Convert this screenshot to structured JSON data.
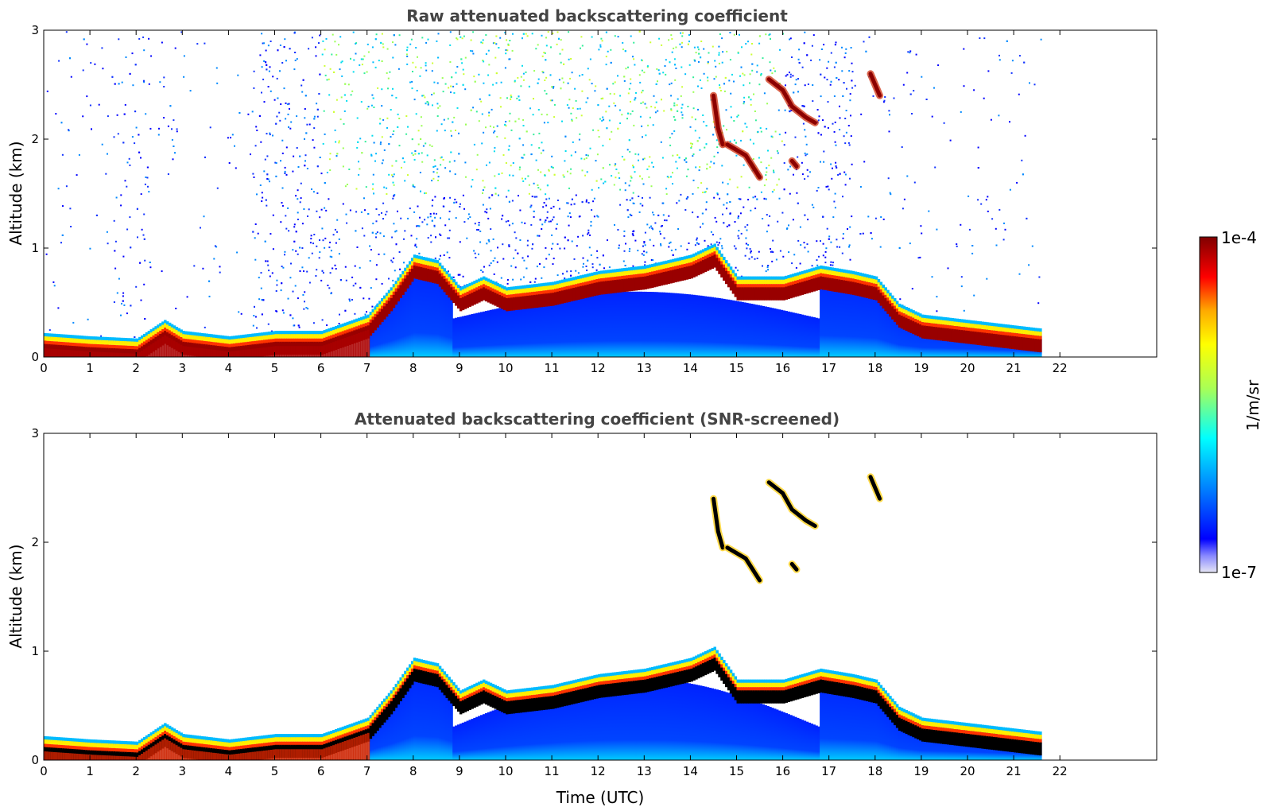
{
  "chart_data": [
    {
      "type": "heatmap",
      "title": "Raw attenuated backscattering coefficient",
      "xlabel": "",
      "ylabel": "Altitude (km)",
      "x_ticks": [
        "0",
        "1",
        "2",
        "3",
        "4",
        "5",
        "6",
        "7",
        "8",
        "9",
        "10",
        "11",
        "12",
        "13",
        "14",
        "15",
        "16",
        "17",
        "18",
        "19",
        "20",
        "21",
        "22"
      ],
      "y_ticks": [
        "0",
        "1",
        "2",
        "3"
      ],
      "xlim": [
        0,
        24
      ],
      "ylim": [
        0,
        3
      ],
      "data_end_time": 21.6,
      "features": {
        "boundary_layer_top_km": [
          [
            0,
            0.18
          ],
          [
            1,
            0.15
          ],
          [
            2,
            0.13
          ],
          [
            2.6,
            0.3
          ],
          [
            3,
            0.2
          ],
          [
            4,
            0.15
          ],
          [
            5,
            0.2
          ],
          [
            6,
            0.2
          ],
          [
            7,
            0.35
          ],
          [
            7.5,
            0.6
          ],
          [
            8,
            0.9
          ],
          [
            8.5,
            0.85
          ],
          [
            9,
            0.6
          ],
          [
            9.5,
            0.7
          ],
          [
            10,
            0.6
          ],
          [
            11,
            0.65
          ],
          [
            12,
            0.75
          ],
          [
            13,
            0.8
          ],
          [
            14,
            0.9
          ],
          [
            14.5,
            1.0
          ],
          [
            15,
            0.7
          ],
          [
            16,
            0.7
          ],
          [
            16.8,
            0.8
          ],
          [
            17.5,
            0.75
          ],
          [
            18,
            0.7
          ],
          [
            18.5,
            0.45
          ],
          [
            19,
            0.35
          ],
          [
            20,
            0.3
          ],
          [
            21,
            0.25
          ],
          [
            21.6,
            0.22
          ]
        ],
        "cloud_segments_km": [
          [
            [
              14.5,
              2.4
            ],
            [
              14.6,
              2.1
            ],
            [
              14.7,
              1.95
            ]
          ],
          [
            [
              14.8,
              1.95
            ],
            [
              15.2,
              1.85
            ],
            [
              15.5,
              1.65
            ]
          ],
          [
            [
              15.7,
              2.55
            ],
            [
              16.0,
              2.45
            ],
            [
              16.2,
              2.3
            ],
            [
              16.5,
              2.2
            ],
            [
              16.7,
              2.15
            ]
          ],
          [
            [
              16.2,
              1.8
            ],
            [
              16.3,
              1.75
            ]
          ],
          [
            [
              17.9,
              2.6
            ],
            [
              18.1,
              2.4
            ]
          ]
        ]
      }
    },
    {
      "type": "heatmap",
      "title": "Attenuated backscattering coefficient (SNR-screened)",
      "xlabel": "Time (UTC)",
      "ylabel": "Altitude (km)",
      "x_ticks": [
        "0",
        "1",
        "2",
        "3",
        "4",
        "5",
        "6",
        "7",
        "8",
        "9",
        "10",
        "11",
        "12",
        "13",
        "14",
        "15",
        "16",
        "17",
        "18",
        "19",
        "20",
        "21",
        "22"
      ],
      "y_ticks": [
        "0",
        "1",
        "2",
        "3"
      ],
      "xlim": [
        0,
        24
      ],
      "ylim": [
        0,
        3
      ],
      "data_end_time": 21.6
    }
  ],
  "colorbar": {
    "label": "1/m/sr",
    "max_label": "1e-4",
    "min_label": "1e-7",
    "colors": [
      "#e6e6f5",
      "#0000ff",
      "#00aaff",
      "#00ffff",
      "#aaff55",
      "#ffff00",
      "#ffaa00",
      "#ff0000",
      "#800000"
    ]
  }
}
